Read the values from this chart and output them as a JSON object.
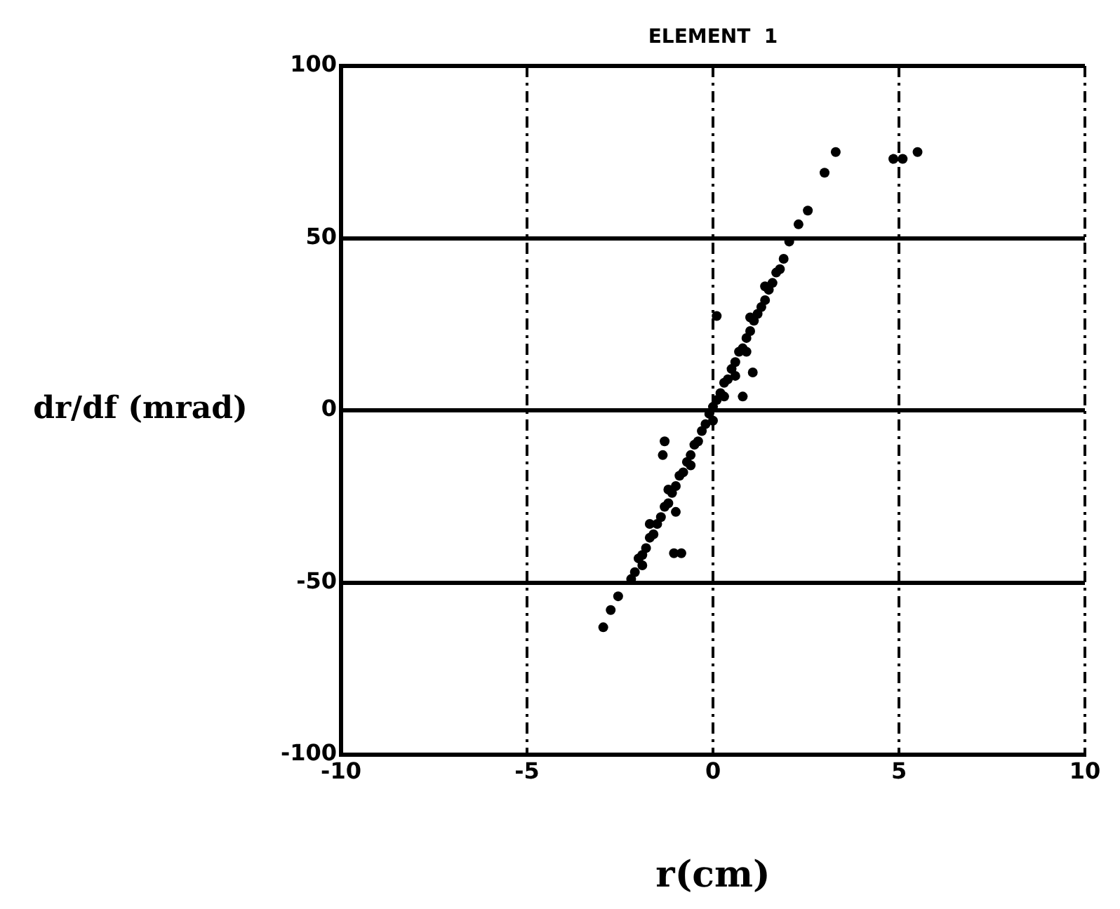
{
  "chart_data": {
    "type": "scatter",
    "title": "ELEMENT  1",
    "xlabel": "r(cm)",
    "ylabel": "dr/df (mrad)",
    "xlim": [
      -10,
      10
    ],
    "xticks": [
      -10,
      -5,
      0,
      5,
      10
    ],
    "ylim": [
      -100,
      100
    ],
    "yticks": [
      -100,
      -50,
      0,
      50,
      100
    ],
    "grid": true,
    "marker": "circle",
    "series": [
      {
        "color": "#000000",
        "x": [
          -2.2,
          -2.1,
          -2.0,
          -1.9,
          -1.8,
          -1.7,
          -1.6,
          -1.5,
          -1.4,
          -1.3,
          -1.2,
          -1.1,
          -1.0,
          -0.9,
          -0.8,
          -0.7,
          -0.6,
          -0.5,
          -0.4,
          -0.3,
          -0.2,
          -0.1,
          0,
          0.1,
          0.2,
          0.3,
          0.4,
          0.5,
          0.6,
          0.7,
          0.8,
          0.9,
          1.0,
          1.1,
          1.2,
          1.3,
          1.4,
          1.5,
          1.6,
          1.7,
          1.8,
          1.9,
          -1.7,
          -1.2,
          -0.6,
          0,
          0.3,
          0.9,
          1.4,
          1.0,
          -1.9,
          0.6,
          -2.55,
          -2.75,
          -2.95,
          2.05,
          2.3,
          2.55,
          3.0,
          3.3,
          4.85,
          5.1,
          5.5,
          -1.3,
          -1.35,
          -1.0,
          -1.05,
          -0.85,
          0.1,
          1.07,
          0.8
        ],
        "values": [
          -49,
          -47,
          -43,
          -42,
          -40,
          -37,
          -36,
          -33,
          -31,
          -28,
          -27,
          -24,
          -22,
          -19,
          -18,
          -15,
          -13,
          -10,
          -9,
          -6,
          -4,
          -1,
          1,
          3,
          5,
          8,
          9,
          12,
          14,
          17,
          18,
          21,
          23,
          26,
          28,
          30,
          32,
          35,
          37,
          40,
          41,
          44,
          -33,
          -23,
          -16,
          -3,
          4,
          17,
          36,
          27,
          -45,
          10,
          -54,
          -58,
          -63,
          49,
          54,
          58,
          69,
          75,
          73,
          73,
          75,
          -9,
          -13,
          -29.5,
          -41.5,
          -41.5,
          27.4,
          11,
          4
        ]
      }
    ]
  }
}
